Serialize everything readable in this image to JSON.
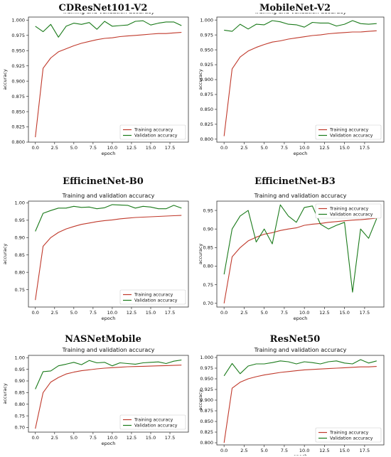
{
  "colors": {
    "training": "#c0392b",
    "validation": "#1a7a1a"
  },
  "chart_data": [
    {
      "model": "CDResNet101-V2",
      "type": "line",
      "title": "Training and validation accuracy",
      "xlabel": "epoch",
      "ylabel": "accuracy",
      "xlim": [
        -0.9,
        19.9
      ],
      "ylim": [
        0.8,
        1.005
      ],
      "xticks": [
        0,
        2.5,
        5,
        7.5,
        10,
        12.5,
        15,
        17.5
      ],
      "xtick_labels": [
        "0.0",
        "2.5",
        "5.0",
        "7.5",
        "10.0",
        "12.5",
        "15.0",
        "17.5"
      ],
      "yticks": [
        0.8,
        0.825,
        0.85,
        0.875,
        0.9,
        0.925,
        0.95,
        0.975,
        1.0
      ],
      "ytick_labels": [
        "0.800",
        "0.825",
        "0.850",
        "0.875",
        "0.900",
        "0.925",
        "0.950",
        "0.975",
        "1.000"
      ],
      "legend": "lower-right",
      "x": [
        0,
        1,
        2,
        3,
        4,
        5,
        6,
        7,
        8,
        9,
        10,
        11,
        12,
        13,
        14,
        15,
        16,
        17,
        18,
        19
      ],
      "series": [
        {
          "name": "Training accuracy",
          "values": [
            0.808,
            0.921,
            0.938,
            0.948,
            0.953,
            0.958,
            0.962,
            0.965,
            0.968,
            0.97,
            0.971,
            0.973,
            0.974,
            0.975,
            0.976,
            0.977,
            0.978,
            0.978,
            0.979,
            0.98
          ]
        },
        {
          "name": "Validation accuracy",
          "values": [
            0.99,
            0.981,
            0.993,
            0.972,
            0.99,
            0.995,
            0.993,
            0.996,
            0.985,
            0.998,
            0.99,
            0.991,
            0.992,
            0.998,
            0.999,
            0.992,
            0.995,
            0.997,
            0.997,
            0.991
          ]
        }
      ]
    },
    {
      "model": "MobileNet-V2",
      "type": "line",
      "title": "Training and validation accuracy",
      "xlabel": "epoch",
      "ylabel": "accuracy",
      "xlim": [
        -0.9,
        19.9
      ],
      "ylim": [
        0.795,
        1.005
      ],
      "xticks": [
        0,
        2.5,
        5,
        7.5,
        10,
        12.5,
        15,
        17.5
      ],
      "xtick_labels": [
        "0.0",
        "2.5",
        "5.0",
        "7.5",
        "10.0",
        "12.5",
        "15.0",
        "17.5"
      ],
      "yticks": [
        0.8,
        0.825,
        0.85,
        0.875,
        0.9,
        0.925,
        0.95,
        0.975,
        1.0
      ],
      "ytick_labels": [
        "0.800",
        "0.825",
        "0.850",
        "0.875",
        "0.900",
        "0.925",
        "0.950",
        "0.975",
        "1.000"
      ],
      "legend": "lower-right",
      "x": [
        0,
        1,
        2,
        3,
        4,
        5,
        6,
        7,
        8,
        9,
        10,
        11,
        12,
        13,
        14,
        15,
        16,
        17,
        18,
        19
      ],
      "series": [
        {
          "name": "Training accuracy",
          "values": [
            0.805,
            0.918,
            0.938,
            0.948,
            0.954,
            0.959,
            0.963,
            0.965,
            0.968,
            0.97,
            0.972,
            0.974,
            0.975,
            0.977,
            0.978,
            0.979,
            0.98,
            0.98,
            0.981,
            0.982
          ]
        },
        {
          "name": "Validation accuracy",
          "values": [
            0.983,
            0.981,
            0.993,
            0.985,
            0.993,
            0.992,
            0.999,
            0.997,
            0.993,
            0.992,
            0.988,
            0.996,
            0.995,
            0.995,
            0.99,
            0.993,
            0.999,
            0.994,
            0.993,
            0.994
          ]
        }
      ]
    },
    {
      "model": "EfficinetNet-B0",
      "type": "line",
      "title": "Training and validation accuracy",
      "xlabel": "epoch",
      "ylabel": "accuracy",
      "xlim": [
        -0.9,
        19.9
      ],
      "ylim": [
        0.7,
        1.005
      ],
      "xticks": [
        0,
        2.5,
        5,
        7.5,
        10,
        12.5,
        15,
        17.5
      ],
      "xtick_labels": [
        "0.0",
        "2.5",
        "5.0",
        "7.5",
        "10.0",
        "12.5",
        "15.0",
        "17.5"
      ],
      "yticks": [
        0.75,
        0.8,
        0.85,
        0.9,
        0.95,
        1.0
      ],
      "ytick_labels": [
        "0.75",
        "0.80",
        "0.85",
        "0.90",
        "0.95",
        "1.00"
      ],
      "legend": "lower-right",
      "x": [
        0,
        1,
        2,
        3,
        4,
        5,
        6,
        7,
        8,
        9,
        10,
        11,
        12,
        13,
        14,
        15,
        16,
        17,
        18,
        19
      ],
      "series": [
        {
          "name": "Training accuracy",
          "values": [
            0.72,
            0.875,
            0.9,
            0.915,
            0.925,
            0.932,
            0.938,
            0.942,
            0.946,
            0.949,
            0.951,
            0.954,
            0.956,
            0.958,
            0.959,
            0.96,
            0.961,
            0.962,
            0.963,
            0.964
          ]
        },
        {
          "name": "Validation accuracy",
          "values": [
            0.918,
            0.97,
            0.978,
            0.985,
            0.985,
            0.99,
            0.987,
            0.988,
            0.983,
            0.986,
            0.995,
            0.994,
            0.993,
            0.985,
            0.99,
            0.988,
            0.983,
            0.983,
            0.993,
            0.985
          ]
        }
      ]
    },
    {
      "model": "EfficinetNet-B3",
      "type": "line",
      "title": "Training and validation accuracy",
      "xlabel": "epoch",
      "ylabel": "accuracy",
      "xlim": [
        -0.9,
        19.9
      ],
      "ylim": [
        0.69,
        0.975
      ],
      "xticks": [
        0,
        2.5,
        5,
        7.5,
        10,
        12.5,
        15,
        17.5
      ],
      "xtick_labels": [
        "0.0",
        "2.5",
        "5.0",
        "7.5",
        "10.0",
        "12.5",
        "15.0",
        "17.5"
      ],
      "yticks": [
        0.7,
        0.75,
        0.8,
        0.85,
        0.9,
        0.95
      ],
      "ytick_labels": [
        "0.70",
        "0.75",
        "0.80",
        "0.85",
        "0.90",
        "0.95"
      ],
      "legend": "upper-right",
      "x": [
        0,
        1,
        2,
        3,
        4,
        5,
        6,
        7,
        8,
        9,
        10,
        11,
        12,
        13,
        14,
        15,
        16,
        17,
        18,
        19
      ],
      "series": [
        {
          "name": "Training accuracy",
          "values": [
            0.7,
            0.825,
            0.85,
            0.868,
            0.878,
            0.886,
            0.89,
            0.896,
            0.9,
            0.903,
            0.91,
            0.913,
            0.915,
            0.918,
            0.92,
            0.922,
            0.924,
            0.925,
            0.927,
            0.929
          ]
        },
        {
          "name": "Validation accuracy",
          "values": [
            0.778,
            0.9,
            0.935,
            0.95,
            0.865,
            0.9,
            0.86,
            0.965,
            0.935,
            0.918,
            0.958,
            0.962,
            0.913,
            0.9,
            0.91,
            0.918,
            0.73,
            0.9,
            0.875,
            0.928
          ]
        }
      ]
    },
    {
      "model": "NASNetMobile",
      "type": "line",
      "title": "Training and validation accuracy",
      "xlabel": "epoch",
      "ylabel": "accuracy",
      "xlim": [
        -0.9,
        19.9
      ],
      "ylim": [
        0.68,
        1.01
      ],
      "xticks": [
        0,
        2.5,
        5,
        7.5,
        10,
        12.5,
        15,
        17.5
      ],
      "xtick_labels": [
        "0.0",
        "2.5",
        "5.0",
        "7.5",
        "10.0",
        "12.5",
        "15.0",
        "17.5"
      ],
      "yticks": [
        0.7,
        0.75,
        0.8,
        0.85,
        0.9,
        0.95,
        1.0
      ],
      "ytick_labels": [
        "0.70",
        "0.75",
        "0.80",
        "0.85",
        "0.90",
        "0.95",
        "1.00"
      ],
      "legend": "lower-right",
      "x": [
        0,
        1,
        2,
        3,
        4,
        5,
        6,
        7,
        8,
        9,
        10,
        11,
        12,
        13,
        14,
        15,
        16,
        17,
        18,
        19
      ],
      "series": [
        {
          "name": "Training accuracy",
          "values": [
            0.695,
            0.85,
            0.895,
            0.915,
            0.93,
            0.938,
            0.944,
            0.948,
            0.952,
            0.955,
            0.957,
            0.959,
            0.961,
            0.962,
            0.963,
            0.964,
            0.965,
            0.966,
            0.967,
            0.968
          ]
        },
        {
          "name": "Validation accuracy",
          "values": [
            0.865,
            0.94,
            0.943,
            0.965,
            0.972,
            0.98,
            0.97,
            0.988,
            0.978,
            0.98,
            0.965,
            0.978,
            0.975,
            0.972,
            0.978,
            0.98,
            0.982,
            0.975,
            0.985,
            0.99
          ]
        }
      ]
    },
    {
      "model": "ResNet50",
      "type": "line",
      "title": "Training and validation accuracy",
      "xlabel": "epoch",
      "ylabel": "accuracy",
      "xlim": [
        -0.9,
        19.9
      ],
      "ylim": [
        0.795,
        1.005
      ],
      "xticks": [
        0,
        2.5,
        5,
        7.5,
        10,
        12.5,
        15,
        17.5
      ],
      "xtick_labels": [
        "0.0",
        "2.5",
        "5.0",
        "7.5",
        "10.0",
        "12.5",
        "15.0",
        "17.5"
      ],
      "yticks": [
        0.8,
        0.825,
        0.85,
        0.875,
        0.9,
        0.925,
        0.95,
        0.975,
        1.0
      ],
      "ytick_labels": [
        "0.800",
        "0.825",
        "0.850",
        "0.875",
        "0.900",
        "0.925",
        "0.950",
        "0.975",
        "1.000"
      ],
      "legend": "lower-right",
      "x": [
        0,
        1,
        2,
        3,
        4,
        5,
        6,
        7,
        8,
        9,
        10,
        11,
        12,
        13,
        14,
        15,
        16,
        17,
        18,
        19
      ],
      "series": [
        {
          "name": "Training accuracy",
          "values": [
            0.8,
            0.928,
            0.942,
            0.95,
            0.955,
            0.959,
            0.962,
            0.965,
            0.967,
            0.969,
            0.971,
            0.972,
            0.973,
            0.974,
            0.975,
            0.976,
            0.977,
            0.978,
            0.978,
            0.979
          ]
        },
        {
          "name": "Validation accuracy",
          "values": [
            0.957,
            0.986,
            0.962,
            0.98,
            0.985,
            0.985,
            0.988,
            0.992,
            0.99,
            0.985,
            0.99,
            0.988,
            0.985,
            0.99,
            0.992,
            0.987,
            0.985,
            0.995,
            0.987,
            0.992
          ]
        }
      ]
    }
  ]
}
